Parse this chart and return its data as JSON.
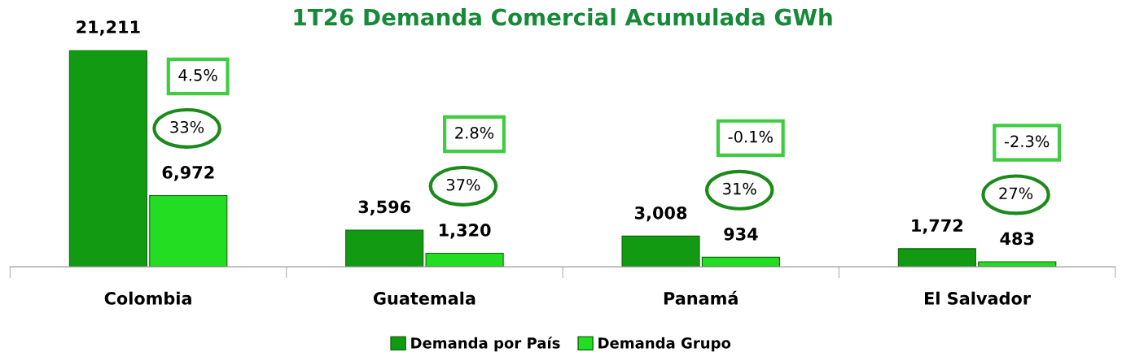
{
  "chart_data": {
    "type": "bar",
    "title": "1T26 Demanda Comercial Acumulada GWh",
    "categories": [
      "Colombia",
      "Guatemala",
      "Panamá",
      "El Salvador"
    ],
    "series": [
      {
        "name": "Demanda por País",
        "color": "#139a13",
        "values": [
          21211,
          3596,
          3008,
          1772
        ],
        "value_labels": [
          "21,211",
          "3,596",
          "3,008",
          "1,772"
        ]
      },
      {
        "name": "Demanda Grupo",
        "color": "#22dd22",
        "values": [
          6972,
          1320,
          934,
          483
        ],
        "value_labels": [
          "6,972",
          "1,320",
          "934",
          "483"
        ]
      }
    ],
    "legend": "bottom",
    "annotations": [
      "4.5%",
      "33%",
      "2.8%",
      "37%",
      "-0.1%",
      "31%",
      "-2.3%",
      "27%"
    ]
  }
}
